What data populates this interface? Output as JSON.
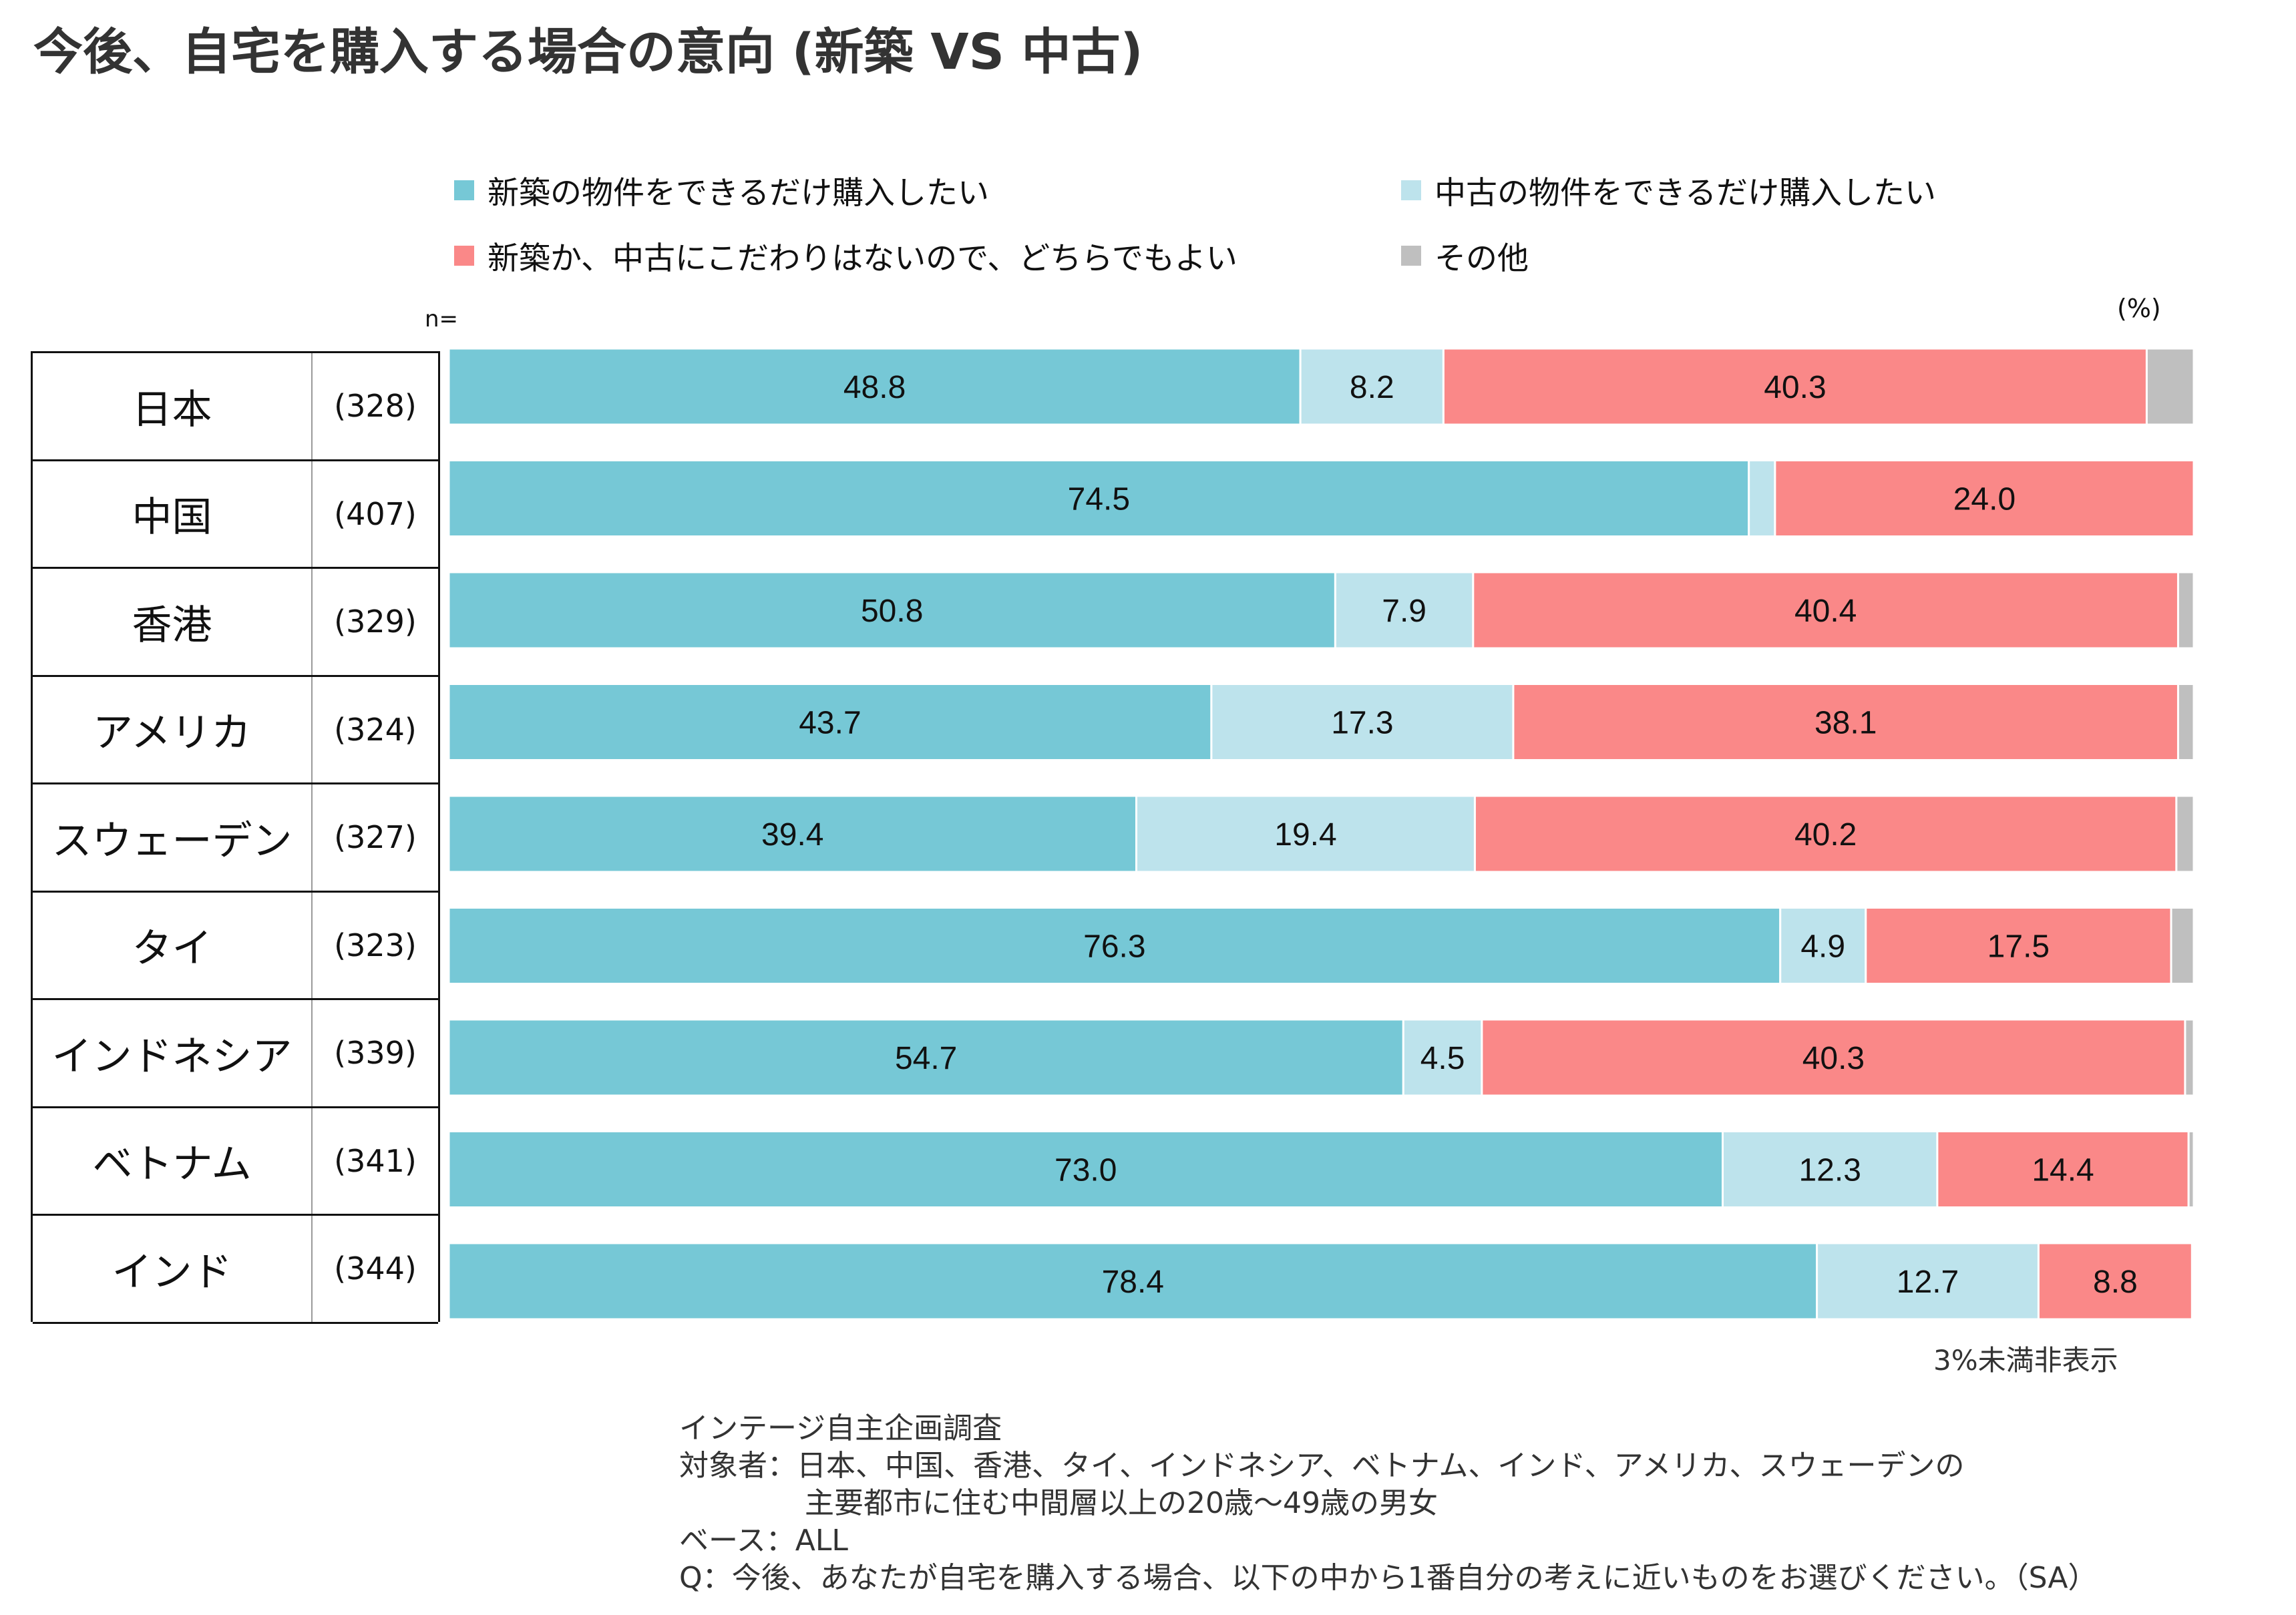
{
  "title": "今後、自宅を購入する場合の意向 (新築 VS 中古)",
  "legend": [
    {
      "label": "新築の物件をできるだけ購入したい",
      "color": "#76c8d6"
    },
    {
      "label": "中古の物件をできるだけ購入したい",
      "color": "#bde3ec"
    },
    {
      "label": "新築か、中古にこだわりはないので、どちらでもよい",
      "color": "#fa8888"
    },
    {
      "label": "その他",
      "color": "#bfbfbf"
    }
  ],
  "n_label": "n=",
  "unit_label": "(%)",
  "chart_data": {
    "type": "bar",
    "stacked": true,
    "orientation": "horizontal",
    "scale_max": 100,
    "categories": [
      "日本",
      "中国",
      "香港",
      "アメリカ",
      "スウェーデン",
      "タイ",
      "インドネシア",
      "ベトナム",
      "インド"
    ],
    "n": [
      "(328)",
      "(407)",
      "(329)",
      "(324)",
      "(327)",
      "(323)",
      "(339)",
      "(341)",
      "(344)"
    ],
    "series": [
      {
        "name": "新築の物件をできるだけ購入したい",
        "color": "#76c8d6",
        "values": [
          48.8,
          74.5,
          50.8,
          43.7,
          39.4,
          76.3,
          54.7,
          73.0,
          78.4
        ]
      },
      {
        "name": "中古の物件をできるだけ購入したい",
        "color": "#bde3ec",
        "values": [
          8.2,
          1.5,
          7.9,
          17.3,
          19.4,
          4.9,
          4.5,
          12.3,
          12.7
        ]
      },
      {
        "name": "新築か、中古にこだわりはないので、どちらでもよい",
        "color": "#fa8888",
        "values": [
          40.3,
          24.0,
          40.4,
          38.1,
          40.2,
          17.5,
          40.3,
          14.4,
          8.8
        ]
      },
      {
        "name": "その他",
        "color": "#bfbfbf",
        "values": [
          2.7,
          0.0,
          0.9,
          0.9,
          1.0,
          1.3,
          0.5,
          0.3,
          0.1
        ]
      }
    ],
    "labels": [
      [
        "48.8",
        "8.2",
        "40.3",
        ""
      ],
      [
        "74.5",
        "",
        "24.0",
        ""
      ],
      [
        "50.8",
        "7.9",
        "40.4",
        ""
      ],
      [
        "43.7",
        "17.3",
        "38.1",
        ""
      ],
      [
        "39.4",
        "19.4",
        "40.2",
        ""
      ],
      [
        "76.3",
        "4.9",
        "17.5",
        ""
      ],
      [
        "54.7",
        "4.5",
        "40.3",
        ""
      ],
      [
        "73.0",
        "12.3",
        "14.4",
        ""
      ],
      [
        "78.4",
        "12.7",
        "8.8",
        ""
      ]
    ]
  },
  "note": "3%未満非表示",
  "footnote": {
    "line1": "インテージ自主企画調査",
    "line2": "対象者：日本、中国、香港、タイ、インドネシア、ベトナム、インド、アメリカ、スウェーデンの",
    "line3": "主要都市に住む中間層以上の20歳〜49歳の男女",
    "line4": "ベース：ALL",
    "line5": "Q：今後、あなたが自宅を購入する場合、以下の中から1番自分の考えに近いものをお選びください。（SA）"
  }
}
